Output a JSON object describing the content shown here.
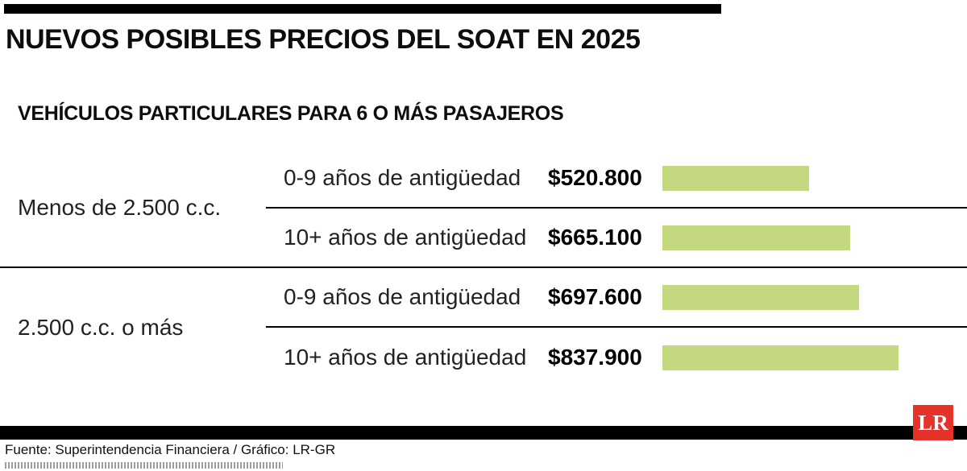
{
  "header": {
    "title": "NUEVOS POSIBLES PRECIOS DEL SOAT EN 2025",
    "subtitle": "VEHÍCULOS PARTICULARES PARA 6 O MÁS PASAJEROS"
  },
  "chart_data": {
    "type": "bar",
    "title": "NUEVOS POSIBLES PRECIOS DEL SOAT EN 2025",
    "subtitle": "VEHÍCULOS PARTICULARES PARA 6 O MÁS PASAJEROS",
    "unit": "COP",
    "bar_color": "#c4d880",
    "max_value": 837900,
    "groups": [
      {
        "category": "Menos de 2.500 c.c.",
        "rows": [
          {
            "label": "0-9 años de antigüedad",
            "value": 520800,
            "price_label": "$520.800"
          },
          {
            "label": "10+ años de antigüedad",
            "value": 665100,
            "price_label": "$665.100"
          }
        ]
      },
      {
        "category": "2.500 c.c. o más",
        "rows": [
          {
            "label": "0-9 años de antigüedad",
            "value": 697600,
            "price_label": "$697.600"
          },
          {
            "label": "10+ años de antigüedad",
            "value": 837900,
            "price_label": "$837.900"
          }
        ]
      }
    ]
  },
  "footer": {
    "credit": "Fuente: Superintendencia Financiera / Gráfico: LR-GR",
    "logo_text": "LR",
    "logo_color": "#e5332a"
  }
}
